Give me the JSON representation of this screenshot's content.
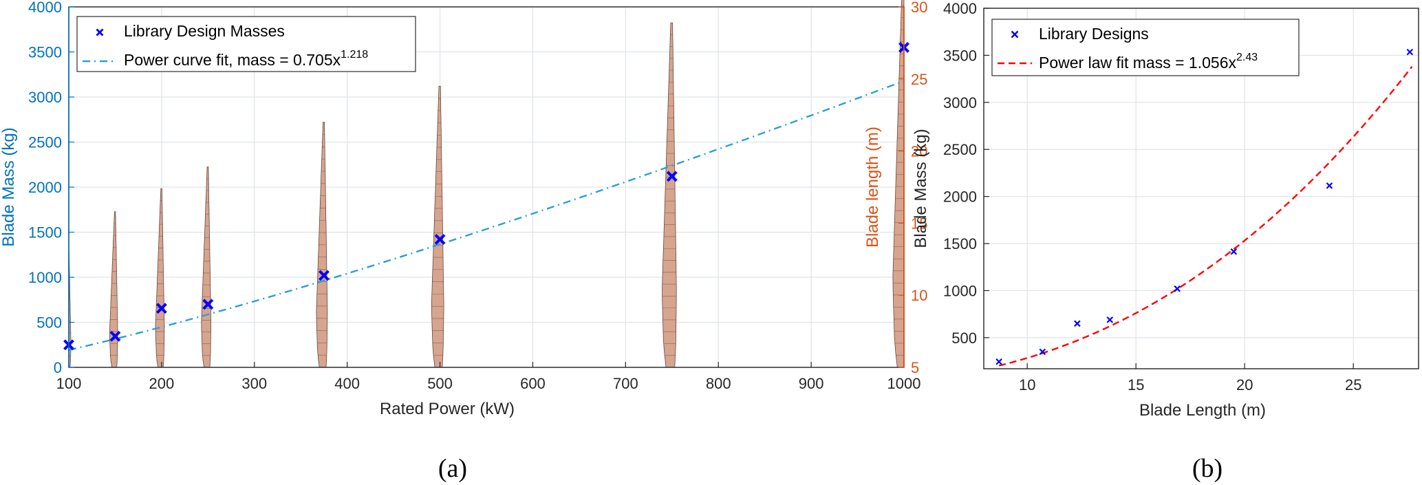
{
  "colors": {
    "mass_axis": "#0072bd",
    "length_axis": "#d95319",
    "markers": "#0000ff",
    "fit_a": "#2a9fd6",
    "fit_b": "#ff0000",
    "blade_fill": "#d7a48e",
    "blade_edge": "#5e4b45"
  },
  "chart_data": [
    {
      "id": "a",
      "type": "scatter",
      "caption": "(a)",
      "xlabel": "Rated Power (kW)",
      "ylabel": "Blade Mass (kg)",
      "ylabel_right": "Blade length (m)",
      "xlim": [
        100,
        1000
      ],
      "ylim": [
        0,
        4000
      ],
      "ylim_right": [
        5,
        30
      ],
      "xticks": [
        100,
        200,
        300,
        400,
        500,
        600,
        700,
        800,
        900,
        1000
      ],
      "yticks": [
        0,
        500,
        1000,
        1500,
        2000,
        2500,
        3000,
        3500,
        4000
      ],
      "yticks_right": [
        5,
        10,
        15,
        20,
        25,
        30
      ],
      "grid": true,
      "legend_position": "top-left",
      "series": [
        {
          "name": "Library Design Masses",
          "marker": "x",
          "x": [
            100,
            150,
            200,
            250,
            375,
            500,
            750,
            1000
          ],
          "y": [
            250,
            345,
            655,
            700,
            1020,
            1420,
            2120,
            3550
          ]
        },
        {
          "name_prefix": "Power curve fit, mass = 0.705x",
          "name_exponent": "1.218",
          "line": "dash-dot",
          "coefficient": 0.705,
          "exponent": 1.218
        }
      ],
      "blade_profiles": {
        "axis": "right",
        "x": [
          100,
          150,
          200,
          250,
          375,
          500,
          750,
          1000
        ],
        "length_m": [
          8.0,
          10.8,
          12.4,
          13.9,
          17.0,
          19.5,
          23.9,
          27.6
        ]
      }
    },
    {
      "id": "b",
      "type": "scatter",
      "caption": "(b)",
      "xlabel": "Blade Length (m)",
      "ylabel": "Blade Mass (kg)",
      "xlim": [
        8,
        28
      ],
      "ylim": [
        0,
        4000
      ],
      "xticks": [
        10,
        15,
        20,
        25
      ],
      "yticks": [
        500,
        1000,
        1500,
        2000,
        2500,
        3000,
        3500,
        4000
      ],
      "grid": true,
      "legend_position": "top-left",
      "series": [
        {
          "name": "Library Designs",
          "marker": "x",
          "x": [
            8.7,
            10.7,
            12.3,
            13.8,
            16.9,
            19.5,
            23.9,
            27.6
          ],
          "y": [
            245,
            350,
            650,
            690,
            1020,
            1415,
            2115,
            3535
          ]
        },
        {
          "name_prefix": "Power law fit mass = 1.056x",
          "name_exponent": "2.43",
          "line": "dashed",
          "coefficient": 1.056,
          "exponent": 2.43
        }
      ]
    }
  ]
}
